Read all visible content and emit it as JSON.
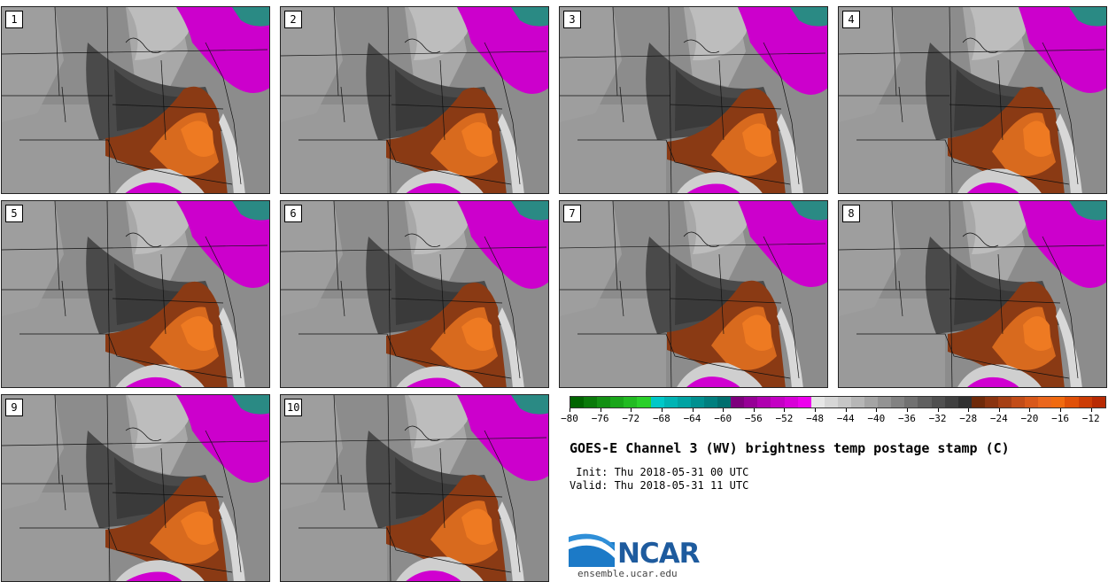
{
  "panels": [
    {
      "label": "1"
    },
    {
      "label": "2"
    },
    {
      "label": "3"
    },
    {
      "label": "4"
    },
    {
      "label": "5"
    },
    {
      "label": "6"
    },
    {
      "label": "7"
    },
    {
      "label": "8"
    },
    {
      "label": "9"
    },
    {
      "label": "10"
    }
  ],
  "colorbar": {
    "tick_labels": [
      "−80",
      "−76",
      "−72",
      "−68",
      "−64",
      "−60",
      "−56",
      "−52",
      "−48",
      "−44",
      "−40",
      "−36",
      "−32",
      "−28",
      "−24",
      "−20",
      "−16",
      "−12"
    ],
    "tick_values": [
      -80,
      -76,
      -72,
      -68,
      -64,
      -60,
      -56,
      -52,
      -48,
      -44,
      -40,
      -36,
      -32,
      -28,
      -24,
      -20,
      -16,
      -12
    ],
    "range": [
      -80,
      -10
    ],
    "colors": [
      "#006400",
      "#0a7a0a",
      "#139013",
      "#1aa61a",
      "#22bb22",
      "#2ad02a",
      "#00c8c8",
      "#00b4b4",
      "#00a3a3",
      "#009090",
      "#007f7f",
      "#006e6e",
      "#7d007d",
      "#960096",
      "#af00af",
      "#c400c4",
      "#d800d8",
      "#ee00ee",
      "#e6e6e6",
      "#d6d6d6",
      "#c6c6c6",
      "#b6b6b6",
      "#a4a4a4",
      "#939393",
      "#828282",
      "#717171",
      "#606060",
      "#505050",
      "#404040",
      "#303030",
      "#6e2a0a",
      "#8a3410",
      "#a64015",
      "#c24c18",
      "#d8581a",
      "#ea661c",
      "#f06a10",
      "#e05008",
      "#cc3c05",
      "#b82a03"
    ]
  },
  "title": "GOES-E Channel 3 (WV) brightness temp postage stamp (C)",
  "init": " Init: Thu 2018-05-31 00 UTC",
  "valid": "Valid: Thu 2018-05-31 11 UTC",
  "logo": {
    "name": "NCAR",
    "url": "ensemble.ucar.edu"
  }
}
